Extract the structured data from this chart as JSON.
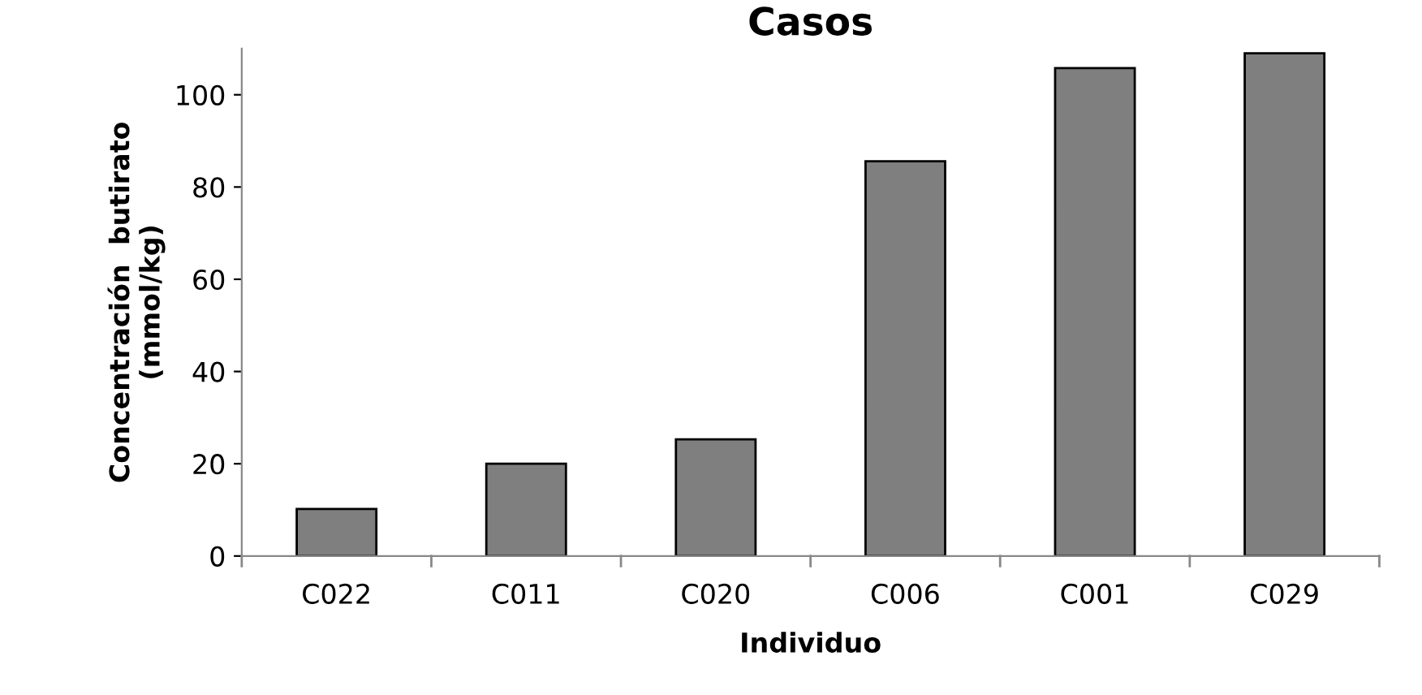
{
  "chart_data": {
    "type": "bar",
    "title": "Casos",
    "xlabel": "Individuo",
    "ylabel": "Concentración  butirato\n(mmol/kg)",
    "categories": [
      "C022",
      "C011",
      "C020",
      "C006",
      "C001",
      "C029"
    ],
    "values": [
      10.2,
      20,
      25.3,
      85.6,
      105.8,
      109
    ],
    "color": "#7f7f7f",
    "ylim": [
      0,
      110
    ],
    "yticks": [
      0,
      20,
      40,
      60,
      80,
      100
    ],
    "grid": false,
    "legend": false
  }
}
